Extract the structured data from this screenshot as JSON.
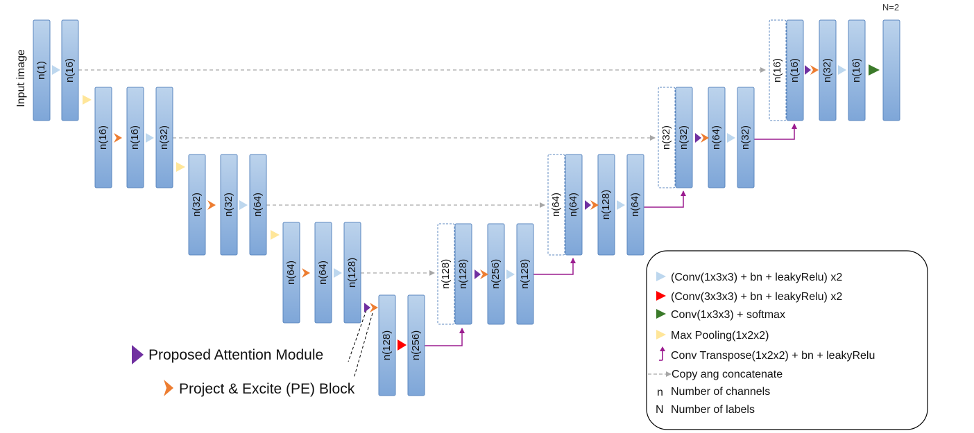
{
  "input_label": "Input image",
  "output_label": "N=2",
  "blocks": [
    {
      "id": "b1",
      "label": "n(1)"
    },
    {
      "id": "b2",
      "label": "n(16)"
    },
    {
      "id": "b3",
      "label": "n(16)"
    },
    {
      "id": "b4",
      "label": "n(16)"
    },
    {
      "id": "b5",
      "label": "n(32)"
    },
    {
      "id": "b6",
      "label": "n(32)"
    },
    {
      "id": "b7",
      "label": "n(32)"
    },
    {
      "id": "b8",
      "label": "n(64)"
    },
    {
      "id": "b9",
      "label": "n(64)"
    },
    {
      "id": "b10",
      "label": "n(64)"
    },
    {
      "id": "b11",
      "label": "n(128)"
    },
    {
      "id": "b12",
      "label": "n(128)"
    },
    {
      "id": "b13",
      "label": "n(256)"
    },
    {
      "id": "c1",
      "label": "n(128)"
    },
    {
      "id": "b14",
      "label": "n(128)"
    },
    {
      "id": "b15",
      "label": "n(256)"
    },
    {
      "id": "b16",
      "label": "n(128)"
    },
    {
      "id": "c2",
      "label": "n(64)"
    },
    {
      "id": "b17",
      "label": "n(64)"
    },
    {
      "id": "b18",
      "label": "n(128)"
    },
    {
      "id": "b19",
      "label": "n(64)"
    },
    {
      "id": "c3",
      "label": "n(32)"
    },
    {
      "id": "b20",
      "label": "n(32)"
    },
    {
      "id": "b21",
      "label": "n(64)"
    },
    {
      "id": "b22",
      "label": "n(32)"
    },
    {
      "id": "c4",
      "label": "n(16)"
    },
    {
      "id": "b23",
      "label": "n(16)"
    },
    {
      "id": "b24",
      "label": "n(32)"
    },
    {
      "id": "b25",
      "label": "n(16)"
    },
    {
      "id": "b26",
      "label": ""
    }
  ],
  "annotations": {
    "attention": "Proposed Attention Module",
    "pe_block": "Project & Excite (PE) Block"
  },
  "legend": [
    {
      "symbol": "blue-triangle",
      "text": "(Conv(1x3x3) + bn + leakyRelu) x2"
    },
    {
      "symbol": "red-triangle",
      "text": "(Conv(3x3x3) + bn + leakyRelu) x2"
    },
    {
      "symbol": "green-triangle",
      "text": "Conv(1x3x3) + softmax"
    },
    {
      "symbol": "yellow-triangle",
      "text": "Max Pooling(1x2x2)"
    },
    {
      "symbol": "purple-up-arrow",
      "text": "Conv Transpose(1x2x2) + bn + leakyRelu"
    },
    {
      "symbol": "dashed-arrow",
      "text": "Copy ang concatenate"
    },
    {
      "symbol": "n",
      "text": "Number of channels"
    },
    {
      "symbol": "N",
      "text": "Number of labels"
    }
  ],
  "colors": {
    "block_top": "#bcd3ec",
    "block_bottom": "#7ea6d8",
    "block_border": "#5b87bf",
    "conv_blue": "#bdd7ee",
    "conv_red": "#ff0000",
    "softmax_green": "#3b7a2a",
    "pool_yellow": "#ffe699",
    "transpose_purple": "#9b1b8f",
    "pe_orange": "#ed7d31",
    "attention_purple": "#7030a0",
    "skip_gray": "#a6a6a6"
  }
}
